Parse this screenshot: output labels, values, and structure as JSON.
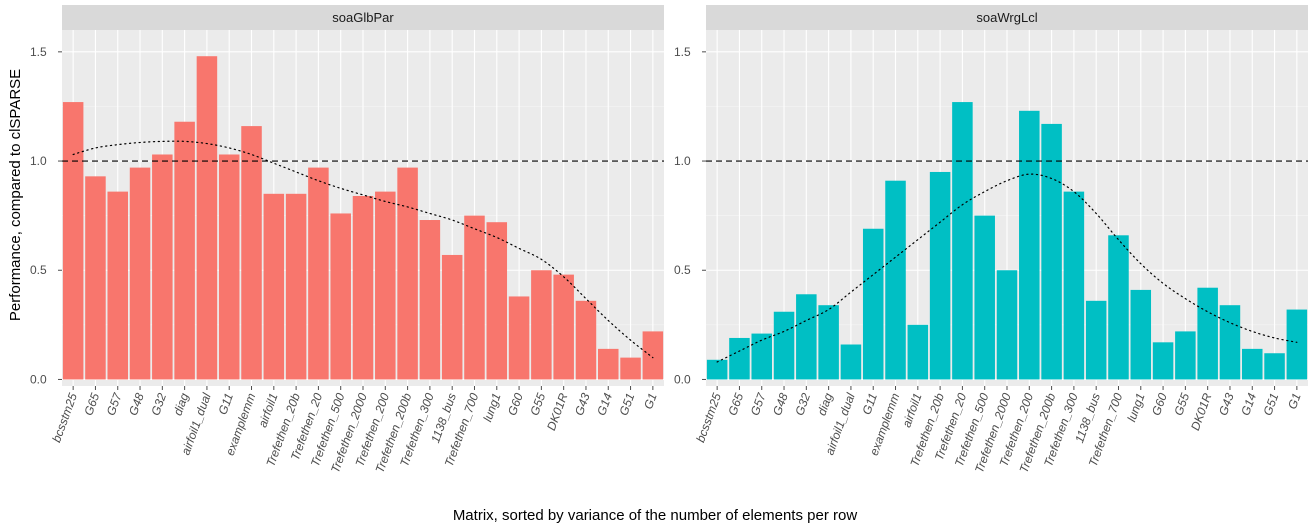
{
  "chart_data": {
    "type": "bar",
    "xlabel": "Matrix, sorted by variance of the number of elements per row",
    "ylabel": "Performance, compared to clSPARSE",
    "ylim": [
      -0.03,
      1.6
    ],
    "yticks": [
      0.0,
      0.5,
      1.0,
      1.5
    ],
    "ytick_labels": [
      "0.0",
      "0.5",
      "1.0",
      "1.5"
    ],
    "reference_line": 1.0,
    "grid": true,
    "legend": "none",
    "categories": [
      "bcsstm25",
      "G65",
      "G57",
      "G48",
      "G32",
      "diag",
      "airfoil1_dual",
      "G11",
      "examplemm",
      "airfoil1",
      "Trefethen_20b",
      "Trefethen_20",
      "Trefethen_500",
      "Trefethen_2000",
      "Trefethen_200",
      "Trefethen_200b",
      "Trefethen_300",
      "1138_bus",
      "Trefethen_700",
      "lung1",
      "G60",
      "G55",
      "DK01R",
      "G43",
      "G14",
      "G51",
      "G1"
    ],
    "panels": [
      {
        "title": "soaGlbPar",
        "color": "#f8766d",
        "values": [
          1.27,
          0.93,
          0.86,
          0.97,
          1.03,
          1.18,
          1.48,
          1.03,
          1.16,
          0.85,
          0.85,
          0.97,
          0.76,
          0.84,
          0.86,
          0.97,
          0.73,
          0.57,
          0.75,
          0.72,
          0.38,
          0.5,
          0.48,
          0.36,
          0.14,
          0.1,
          0.22
        ],
        "trend": [
          1.03,
          1.06,
          1.075,
          1.085,
          1.09,
          1.09,
          1.08,
          1.06,
          1.03,
          0.99,
          0.95,
          0.91,
          0.875,
          0.845,
          0.815,
          0.79,
          0.76,
          0.73,
          0.69,
          0.65,
          0.6,
          0.55,
          0.47,
          0.37,
          0.27,
          0.18,
          0.1
        ]
      },
      {
        "title": "soaWrgLcl",
        "color": "#00bfc4",
        "values": [
          0.09,
          0.19,
          0.21,
          0.31,
          0.39,
          0.34,
          0.16,
          0.69,
          0.91,
          0.25,
          0.95,
          1.27,
          0.75,
          0.5,
          1.23,
          1.17,
          0.86,
          0.36,
          0.66,
          0.41,
          0.17,
          0.22,
          0.42,
          0.34,
          0.14,
          0.12,
          0.32
        ],
        "trend": [
          0.08,
          0.13,
          0.18,
          0.22,
          0.27,
          0.32,
          0.4,
          0.48,
          0.56,
          0.64,
          0.72,
          0.8,
          0.86,
          0.91,
          0.94,
          0.92,
          0.86,
          0.76,
          0.64,
          0.53,
          0.44,
          0.37,
          0.31,
          0.26,
          0.22,
          0.19,
          0.17
        ]
      }
    ]
  }
}
